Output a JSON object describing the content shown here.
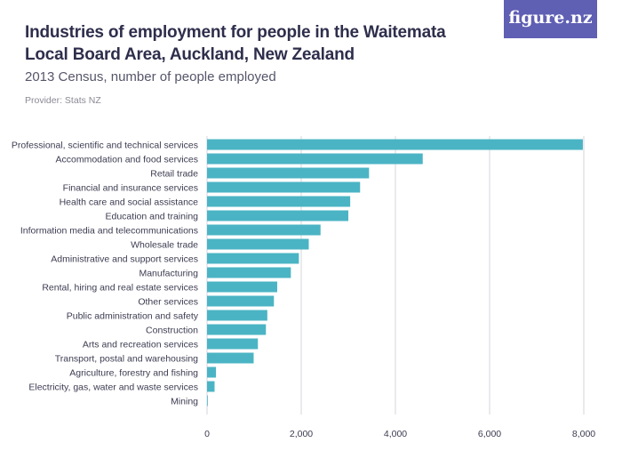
{
  "header": {
    "title": "Industries of employment for people in the Waitemata Local Board Area, Auckland, New Zealand",
    "subtitle": "2013 Census, number of people employed",
    "provider": "Provider: Stats NZ",
    "logo_text": "figure.nz"
  },
  "colors": {
    "bar": "#4bb4c4",
    "gridline": "#d6d6dc",
    "logo_bg": "#5f5fb4"
  },
  "chart_data": {
    "type": "bar",
    "orientation": "horizontal",
    "categories": [
      "Professional, scientific and technical services",
      "Accommodation and food services",
      "Retail trade",
      "Financial and insurance services",
      "Health care and social assistance",
      "Education and training",
      "Information media and telecommunications",
      "Wholesale trade",
      "Administrative and support services",
      "Manufacturing",
      "Rental, hiring and real estate services",
      "Other services",
      "Public administration and safety",
      "Construction",
      "Arts and recreation services",
      "Transport, postal and warehousing",
      "Agriculture, forestry and fishing",
      "Electricity, gas, water and waste services",
      "Mining"
    ],
    "values": [
      7980,
      4580,
      3440,
      3250,
      3040,
      3000,
      2410,
      2160,
      1950,
      1780,
      1490,
      1420,
      1280,
      1250,
      1080,
      990,
      190,
      160,
      3
    ],
    "xlim": [
      0,
      8000
    ],
    "xticks": [
      0,
      2000,
      4000,
      6000,
      8000
    ],
    "xtick_labels": [
      "0",
      "2,000",
      "4,000",
      "6,000",
      "8,000"
    ],
    "grid": "vertical",
    "legend": "none"
  }
}
